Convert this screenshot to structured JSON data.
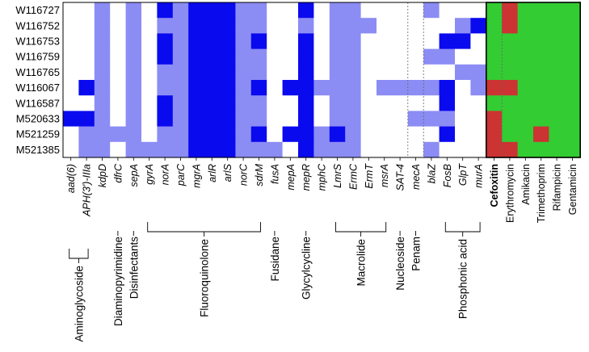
{
  "chart_data": {
    "type": "heatmap",
    "rows": [
      "W116727",
      "W116752",
      "W116753",
      "W116759",
      "W116765",
      "W116067",
      "W116587",
      "M520633",
      "M521259",
      "M521385"
    ],
    "genes": [
      "aad(6)",
      "APH(3')-IIIa",
      "kdpD",
      "dfrC",
      "sepA",
      "gyrA",
      "norA",
      "parC",
      "mgrA",
      "arlR",
      "arlS",
      "norC",
      "sdrM",
      "fusA",
      "mepA",
      "mepR",
      "mphC",
      "LmrS",
      "ErmC",
      "ErmT",
      "msrA",
      "SAT-4",
      "mecA",
      "blaZ",
      "FosB",
      "GlpT",
      "murA"
    ],
    "gene_values": [
      [
        0,
        0,
        1,
        0,
        1,
        0,
        2,
        1,
        2,
        2,
        2,
        1,
        1,
        0,
        0,
        2,
        0,
        1,
        1,
        0,
        0,
        0,
        0,
        1,
        0,
        0,
        0
      ],
      [
        0,
        0,
        1,
        0,
        1,
        0,
        1,
        1,
        2,
        2,
        2,
        1,
        1,
        0,
        0,
        1,
        0,
        1,
        1,
        1,
        0,
        0,
        0,
        0,
        0,
        1,
        2
      ],
      [
        0,
        0,
        1,
        0,
        1,
        0,
        2,
        1,
        2,
        2,
        2,
        1,
        2,
        0,
        0,
        2,
        0,
        1,
        1,
        0,
        0,
        0,
        0,
        0,
        2,
        2,
        0
      ],
      [
        0,
        0,
        1,
        0,
        1,
        0,
        2,
        1,
        2,
        2,
        2,
        1,
        1,
        0,
        0,
        2,
        0,
        1,
        1,
        0,
        0,
        0,
        0,
        1,
        1,
        0,
        0
      ],
      [
        0,
        0,
        1,
        0,
        1,
        0,
        1,
        1,
        2,
        2,
        2,
        1,
        1,
        0,
        0,
        2,
        0,
        1,
        1,
        0,
        0,
        0,
        0,
        0,
        0,
        1,
        1
      ],
      [
        0,
        2,
        1,
        0,
        1,
        0,
        1,
        1,
        2,
        2,
        2,
        1,
        2,
        0,
        2,
        2,
        1,
        1,
        1,
        0,
        1,
        1,
        1,
        1,
        2,
        0,
        1
      ],
      [
        0,
        0,
        1,
        0,
        1,
        0,
        2,
        1,
        2,
        2,
        2,
        1,
        1,
        0,
        0,
        2,
        0,
        1,
        1,
        0,
        0,
        0,
        0,
        0,
        2,
        0,
        0
      ],
      [
        2,
        2,
        1,
        0,
        1,
        0,
        2,
        1,
        2,
        2,
        2,
        1,
        1,
        0,
        0,
        2,
        0,
        1,
        1,
        0,
        0,
        0,
        1,
        1,
        1,
        0,
        0
      ],
      [
        0,
        1,
        1,
        1,
        1,
        0,
        1,
        1,
        2,
        2,
        2,
        1,
        2,
        0,
        2,
        2,
        1,
        2,
        1,
        0,
        0,
        0,
        0,
        0,
        2,
        0,
        0
      ],
      [
        0,
        1,
        1,
        0,
        1,
        1,
        1,
        1,
        2,
        2,
        2,
        1,
        1,
        1,
        0,
        2,
        1,
        1,
        1,
        0,
        0,
        0,
        0,
        1,
        0,
        0,
        0
      ]
    ],
    "gene_value_levels": [
      "absent",
      "partial",
      "present"
    ],
    "antibiotics": [
      "Cefoxitin",
      "Erythromycin",
      "Amikacin",
      "Trimethoprim",
      "Rifampicin",
      "Gentamicin"
    ],
    "antibiotic_values": [
      [
        "S",
        "R",
        "S",
        "S",
        "S",
        "S"
      ],
      [
        "S",
        "R",
        "S",
        "S",
        "S",
        "S"
      ],
      [
        "S",
        "S",
        "S",
        "S",
        "S",
        "S"
      ],
      [
        "S",
        "S",
        "S",
        "S",
        "S",
        "S"
      ],
      [
        "S",
        "S",
        "S",
        "S",
        "S",
        "S"
      ],
      [
        "R",
        "R",
        "S",
        "S",
        "S",
        "S"
      ],
      [
        "S",
        "S",
        "S",
        "S",
        "S",
        "S"
      ],
      [
        "R",
        "S",
        "S",
        "S",
        "S",
        "S"
      ],
      [
        "R",
        "S",
        "S",
        "R",
        "S",
        "S"
      ],
      [
        "R",
        "R",
        "S",
        "S",
        "S",
        "S"
      ]
    ],
    "antibiotic_value_levels": [
      "S",
      "R"
    ],
    "bold_antibiotic": "Cefoxitin",
    "classes": [
      {
        "name": "Aminoglycoside",
        "start": 0,
        "end": 1
      },
      {
        "name": "Diaminopyrimidine",
        "start": 3,
        "end": 3
      },
      {
        "name": "Disinfectants",
        "start": 4,
        "end": 4
      },
      {
        "name": "Fluoroquinolone",
        "start": 5,
        "end": 12
      },
      {
        "name": "Fusidane",
        "start": 13,
        "end": 13
      },
      {
        "name": "Glycylcycline",
        "start": 15,
        "end": 15
      },
      {
        "name": "Macrolide",
        "start": 17,
        "end": 20
      },
      {
        "name": "Nucleoside",
        "start": 21,
        "end": 21
      },
      {
        "name": "Penam",
        "start": 22,
        "end": 22
      },
      {
        "name": "Phosphonic acid",
        "start": 24,
        "end": 26
      }
    ],
    "dashed_dividers_after_gene": [
      21,
      22
    ],
    "colors": {
      "absent": "#ffffff",
      "partial": "#8c8cf5",
      "present": "#0a0aee",
      "susceptible": "#33cc33",
      "resistant": "#cc3333",
      "border": "#000000",
      "divider": "#666666"
    }
  }
}
